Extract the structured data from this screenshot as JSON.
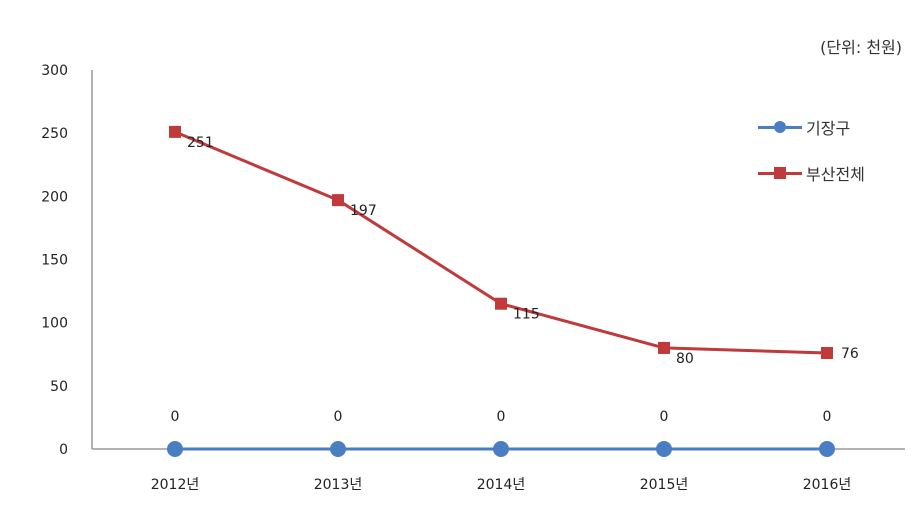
{
  "unit_label": "(단위: 천원)",
  "chart_data": {
    "type": "line",
    "categories": [
      "2012년",
      "2013년",
      "2014년",
      "2015년",
      "2016년"
    ],
    "ylim": [
      0,
      300
    ],
    "yticks": [
      0,
      50,
      100,
      150,
      200,
      250,
      300
    ],
    "grid": false,
    "legend_position": "right",
    "series": [
      {
        "name": "기장구",
        "values": [
          0,
          0,
          0,
          0,
          0
        ],
        "color": "#4a7ec2",
        "marker": "circle"
      },
      {
        "name": "부산전체",
        "values": [
          251,
          197,
          115,
          80,
          76
        ],
        "color": "#c0393b",
        "marker": "square"
      }
    ]
  }
}
